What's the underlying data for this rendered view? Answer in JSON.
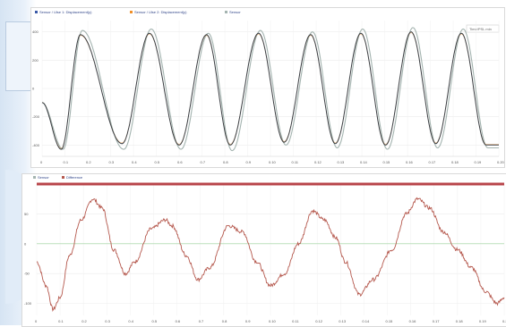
{
  "chart_data": [
    {
      "type": "line",
      "legend_position": "top-left",
      "grid": true,
      "badge": "Time/PSL min",
      "series": [
        {
          "name": "Sensor / Ulse 1: Displacement(y)",
          "color": "#3b5aa8"
        },
        {
          "name": "Sensor / Ulse 2: Displacement(y)",
          "color": "#f0902a"
        },
        {
          "name": "Sensor",
          "color": "#a4b4b0"
        }
      ],
      "x_ticks": [
        "0",
        "0.1",
        "0.2",
        "0.3",
        "0.4",
        "0.5",
        "0.6",
        "0.7",
        "0.8",
        "0.9",
        "0.10",
        "0.11",
        "0.12",
        "0.13",
        "0.14",
        "0.15",
        "0.16",
        "0.17",
        "0.18",
        "0.19",
        "0.20"
      ],
      "y_ticks": [
        "400",
        "200",
        "0",
        "-200",
        "-400"
      ],
      "ylim": [
        -480,
        480
      ],
      "peaks": [
        {
          "x": 0.042,
          "y": -430
        },
        {
          "x": 0.084,
          "y": 380
        },
        {
          "x": 0.175,
          "y": -390
        },
        {
          "x": 0.235,
          "y": 390
        },
        {
          "x": 0.3,
          "y": -400
        },
        {
          "x": 0.36,
          "y": 380
        },
        {
          "x": 0.412,
          "y": -400
        },
        {
          "x": 0.474,
          "y": 390
        },
        {
          "x": 0.53,
          "y": -380
        },
        {
          "x": 0.588,
          "y": 380
        },
        {
          "x": 0.642,
          "y": -390
        },
        {
          "x": 0.698,
          "y": 390
        },
        {
          "x": 0.752,
          "y": -400
        },
        {
          "x": 0.808,
          "y": 400
        },
        {
          "x": 0.862,
          "y": -390
        },
        {
          "x": 0.918,
          "y": 390
        },
        {
          "x": 0.972,
          "y": -400
        }
      ],
      "overshoot": [
        0,
        30,
        40,
        30,
        30,
        10,
        40,
        20,
        20,
        20,
        30,
        30,
        30,
        30,
        30,
        30,
        20
      ]
    },
    {
      "type": "line",
      "legend_position": "top-left",
      "grid": true,
      "series": [
        {
          "name": "Sensor",
          "color": "#a4b4b0"
        },
        {
          "name": "Difference",
          "color": "#b5584d"
        }
      ],
      "reference_line": {
        "value": 100,
        "color": "#b8444a"
      },
      "x_ticks": [
        "0",
        "0.1",
        "0.2",
        "0.3",
        "0.4",
        "0.5",
        "0.6",
        "0.7",
        "0.8",
        "0.9",
        "0.10",
        "0.11",
        "0.12",
        "0.13",
        "0.14",
        "0.15",
        "0.16",
        "0.17",
        "0.18",
        "0.19",
        "0.20"
      ],
      "y_ticks": [
        "50",
        "0",
        "-50",
        "-100"
      ],
      "ylim": [
        -120,
        100
      ],
      "difference": [
        [
          0.0,
          -30
        ],
        [
          0.02,
          -70
        ],
        [
          0.035,
          -110
        ],
        [
          0.05,
          -90
        ],
        [
          0.07,
          -20
        ],
        [
          0.095,
          40
        ],
        [
          0.12,
          75
        ],
        [
          0.14,
          60
        ],
        [
          0.165,
          -10
        ],
        [
          0.19,
          -50
        ],
        [
          0.21,
          -30
        ],
        [
          0.245,
          25
        ],
        [
          0.275,
          40
        ],
        [
          0.29,
          30
        ],
        [
          0.32,
          -20
        ],
        [
          0.345,
          -60
        ],
        [
          0.37,
          -40
        ],
        [
          0.41,
          30
        ],
        [
          0.44,
          20
        ],
        [
          0.47,
          -30
        ],
        [
          0.5,
          -70
        ],
        [
          0.53,
          -50
        ],
        [
          0.56,
          0
        ],
        [
          0.59,
          55
        ],
        [
          0.615,
          40
        ],
        [
          0.64,
          10
        ],
        [
          0.66,
          -30
        ],
        [
          0.69,
          -85
        ],
        [
          0.72,
          -60
        ],
        [
          0.76,
          -10
        ],
        [
          0.79,
          50
        ],
        [
          0.815,
          75
        ],
        [
          0.84,
          60
        ],
        [
          0.87,
          20
        ],
        [
          0.9,
          -10
        ],
        [
          0.93,
          -40
        ],
        [
          0.96,
          -80
        ],
        [
          0.985,
          -100
        ],
        [
          1.0,
          -90
        ]
      ]
    }
  ]
}
